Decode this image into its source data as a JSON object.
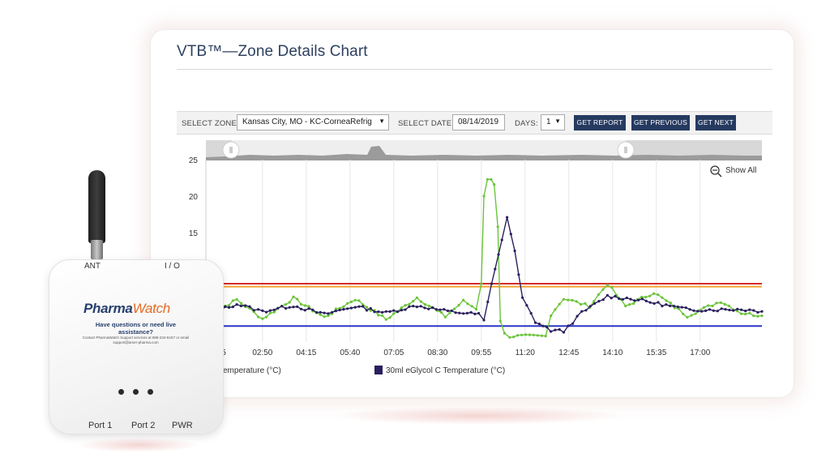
{
  "window": {
    "title": "VTB™—Zone Details Chart"
  },
  "controls": {
    "zone_label": "SELECT ZONE:",
    "zone_value": "Kansas City, MO - KC-CorneaRefrig",
    "date_label": "SELECT DATE:",
    "date_value": "08/14/2019",
    "days_label": "DAYS:",
    "days_value": "1",
    "get_report": "GET REPORT",
    "get_previous": "GET PREVIOUS",
    "get_next": "GET NEXT"
  },
  "chart": {
    "show_all": "Show All"
  },
  "chart_data": {
    "type": "line",
    "x_tick_labels": [
      "02:50",
      "04:15",
      "05:40",
      "07:05",
      "08:30",
      "09:55",
      "11:20",
      "12:45",
      "14:10",
      "15:35",
      "17:00"
    ],
    "x_tick_partial": "5",
    "x_range_minutes": [
      60,
      1140
    ],
    "ylim": [
      0,
      25
    ],
    "y_ticks": [
      25,
      20,
      15
    ],
    "thresholds": [
      {
        "value": 8,
        "color": "#d62c2c"
      },
      {
        "value": 7.6,
        "color": "#f0a431"
      },
      {
        "value": 2.2,
        "color": "#2b35c9"
      }
    ],
    "series": [
      {
        "name": "Temperature (°C)",
        "color": "#6cc43a",
        "baseline": 4.4,
        "points": [
          [
            60,
            3.5
          ],
          [
            120,
            5.8
          ],
          [
            170,
            3.2
          ],
          [
            230,
            6.0
          ],
          [
            290,
            3.4
          ],
          [
            350,
            5.9
          ],
          [
            410,
            3.1
          ],
          [
            470,
            6.1
          ],
          [
            525,
            3.5
          ],
          [
            560,
            5.6
          ],
          [
            585,
            4.6
          ],
          [
            595,
            8.0
          ],
          [
            600,
            20
          ],
          [
            607,
            22.3
          ],
          [
            614,
            22.3
          ],
          [
            620,
            21.6
          ],
          [
            627,
            15.8
          ],
          [
            632,
            3.0
          ],
          [
            640,
            1.1
          ],
          [
            650,
            0.8
          ],
          [
            720,
            0.8
          ],
          [
            730,
            3.8
          ],
          [
            755,
            6.0
          ],
          [
            805,
            4.9
          ],
          [
            840,
            8.0
          ],
          [
            875,
            4.9
          ],
          [
            930,
            6.8
          ],
          [
            995,
            3.6
          ],
          [
            1060,
            5.6
          ],
          [
            1100,
            4.0
          ],
          [
            1140,
            3.6
          ]
        ]
      },
      {
        "name": "30ml eGlycol C Temperature (°C)",
        "color": "#2a1f5e",
        "baseline": 4.5,
        "points": [
          [
            60,
            3.8
          ],
          [
            120,
            5.2
          ],
          [
            170,
            4.2
          ],
          [
            230,
            5.0
          ],
          [
            290,
            3.8
          ],
          [
            350,
            4.9
          ],
          [
            410,
            4.0
          ],
          [
            470,
            5.0
          ],
          [
            530,
            4.2
          ],
          [
            590,
            3.8
          ],
          [
            600,
            3.0
          ],
          [
            615,
            8.0
          ],
          [
            635,
            14.0
          ],
          [
            645,
            17.1
          ],
          [
            660,
            12.5
          ],
          [
            675,
            6.0
          ],
          [
            700,
            2.8
          ],
          [
            730,
            1.6
          ],
          [
            755,
            1.5
          ],
          [
            790,
            4.0
          ],
          [
            840,
            6.3
          ],
          [
            900,
            5.8
          ],
          [
            1000,
            4.4
          ],
          [
            1100,
            4.5
          ],
          [
            1140,
            4.2
          ]
        ]
      }
    ]
  },
  "legend": {
    "item1": "Temperature (°C)",
    "item2": "30ml eGlycol C Temperature (°C)"
  },
  "device": {
    "ant_label": "ANT",
    "io_label": "I / O",
    "brand_part1": "Pharma",
    "brand_part2": "Watch",
    "question": "Have questions or need live assistance?",
    "contact": "Contact PharmaWatch Support services at 888-234-5157 or email support@amer-pharma.com",
    "port1": "Port 1",
    "port2": "Port 2",
    "pwr": "PWR"
  }
}
